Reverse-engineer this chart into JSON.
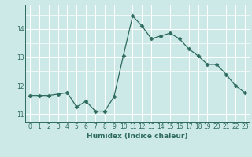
{
  "x": [
    0,
    1,
    2,
    3,
    4,
    5,
    6,
    7,
    8,
    9,
    10,
    11,
    12,
    13,
    14,
    15,
    16,
    17,
    18,
    19,
    20,
    21,
    22,
    23
  ],
  "y": [
    11.65,
    11.65,
    11.65,
    11.7,
    11.75,
    11.25,
    11.45,
    11.1,
    11.1,
    11.6,
    13.05,
    14.45,
    14.1,
    13.65,
    13.75,
    13.85,
    13.65,
    13.3,
    13.05,
    12.75,
    12.75,
    12.4,
    12.0,
    11.75
  ],
  "line_color": "#2e6b5e",
  "marker": "D",
  "marker_size": 2.5,
  "bg_color": "#cce9e7",
  "grid_color": "#ffffff",
  "title": "",
  "xlabel": "Humidex (Indice chaleur)",
  "ylabel": "",
  "xlim": [
    -0.5,
    23.5
  ],
  "ylim": [
    10.7,
    14.85
  ],
  "yticks": [
    11,
    12,
    13,
    14
  ],
  "xticks": [
    0,
    1,
    2,
    3,
    4,
    5,
    6,
    7,
    8,
    9,
    10,
    11,
    12,
    13,
    14,
    15,
    16,
    17,
    18,
    19,
    20,
    21,
    22,
    23
  ],
  "tick_color": "#2e6b5e",
  "label_fontsize": 6.5,
  "tick_fontsize": 5.5
}
